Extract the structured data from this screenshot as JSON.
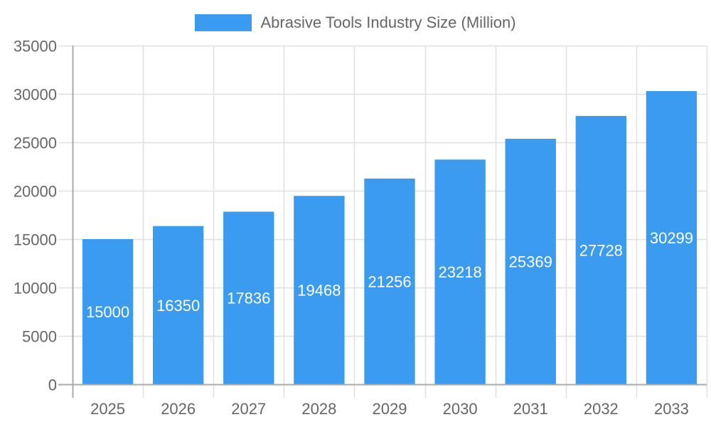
{
  "legend": {
    "label": "Abrasive Tools Industry Size (Million)",
    "color": "#3a9bef"
  },
  "chart_data": {
    "type": "bar",
    "title": "",
    "xlabel": "",
    "ylabel": "",
    "categories": [
      "2025",
      "2026",
      "2027",
      "2028",
      "2029",
      "2030",
      "2031",
      "2032",
      "2033"
    ],
    "series": [
      {
        "name": "Abrasive Tools Industry Size (Million)",
        "color": "#3a9bef",
        "values": [
          15000,
          16350,
          17836,
          19468,
          21256,
          23218,
          25369,
          27728,
          30299
        ]
      }
    ],
    "ylim": [
      0,
      35000
    ],
    "yticks": [
      0,
      5000,
      10000,
      15000,
      20000,
      25000,
      30000,
      35000
    ],
    "grid": true,
    "legend_position": "top",
    "data_labels": true
  }
}
